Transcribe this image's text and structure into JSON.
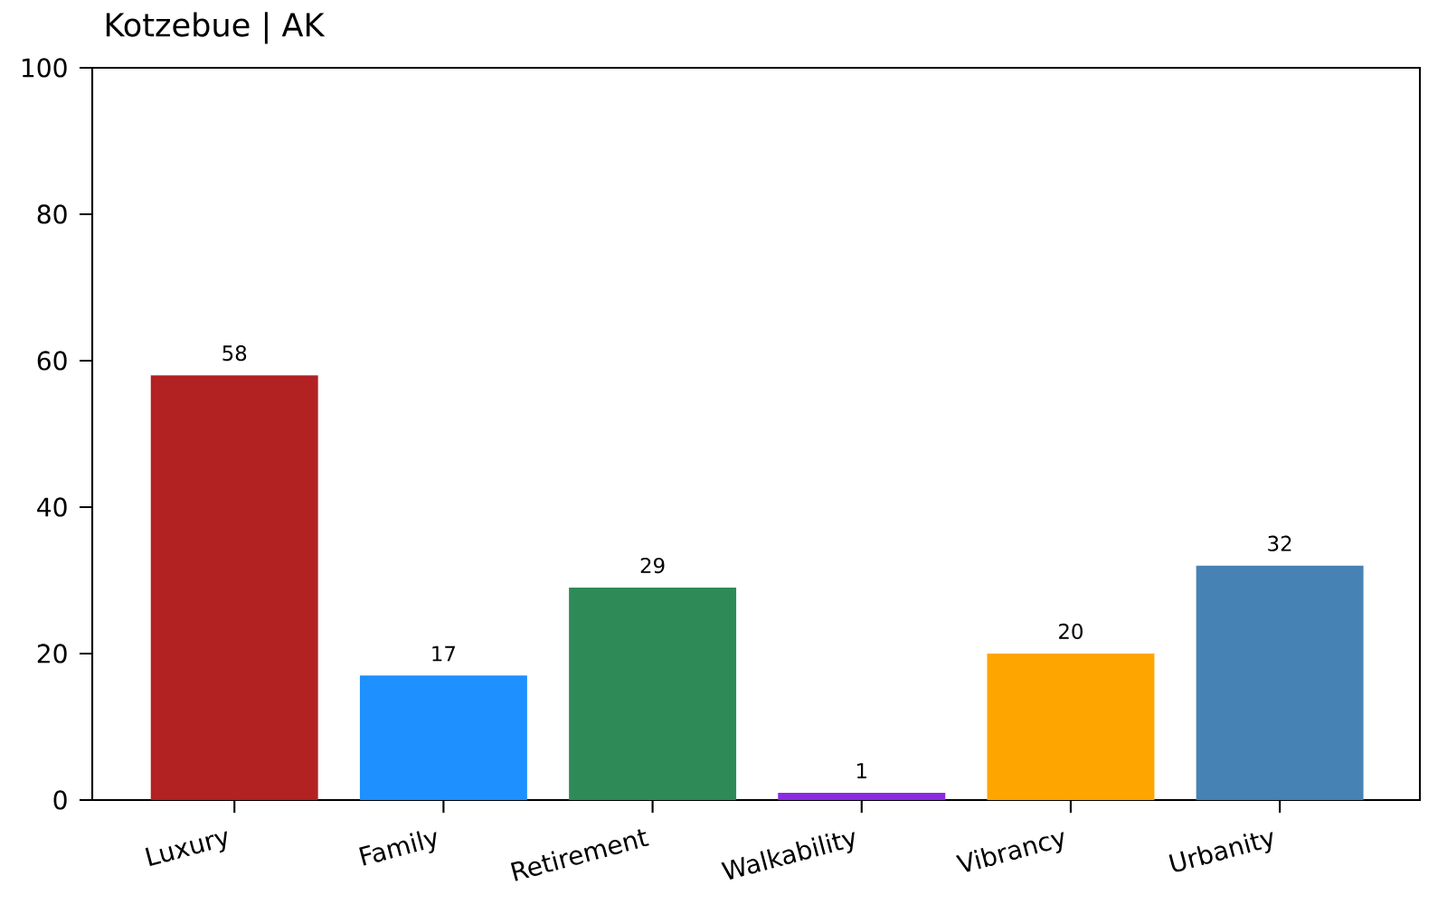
{
  "chart_data": {
    "type": "bar",
    "title": "Kotzebue | AK",
    "categories": [
      "Luxury",
      "Family",
      "Retirement",
      "Walkability",
      "Vibrancy",
      "Urbanity"
    ],
    "values": [
      58,
      17,
      29,
      1,
      20,
      32
    ],
    "colors": [
      "#b22222",
      "#1e90ff",
      "#2e8b57",
      "#8a2be2",
      "#ffa500",
      "#4682b4"
    ],
    "ylim": [
      0,
      100
    ],
    "yticks": [
      0,
      20,
      40,
      60,
      80,
      100
    ],
    "data_labels": true
  }
}
